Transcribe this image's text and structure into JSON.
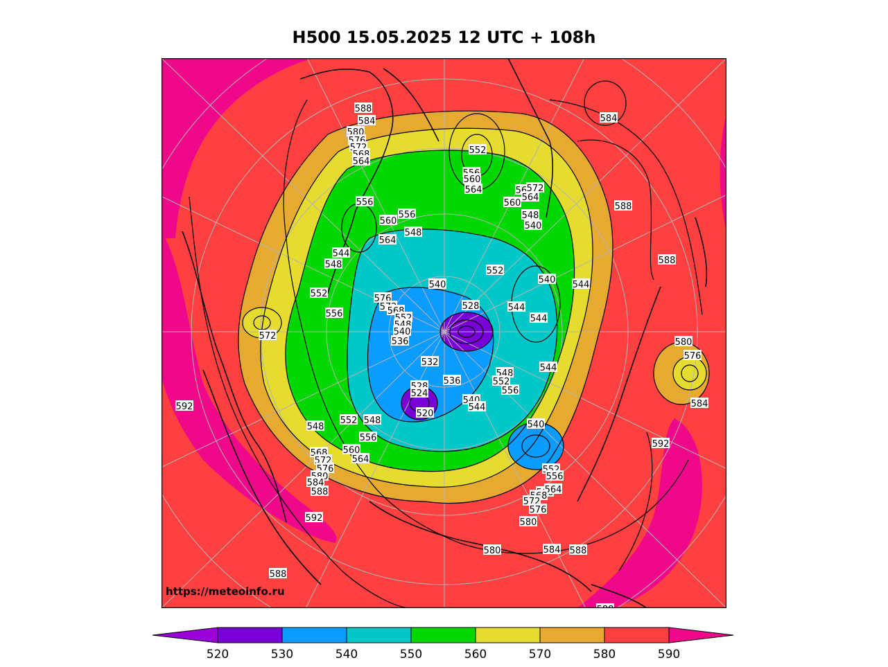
{
  "title": "H500  15.05.2025 12 UTC + 108h",
  "watermark": "https://meteoinfo.ru",
  "colorbar": {
    "ticks": [
      "520",
      "530",
      "540",
      "550",
      "560",
      "570",
      "580",
      "590"
    ],
    "colors": [
      "#9b00d6",
      "#7a00d8",
      "#0a9cff",
      "#00c8c8",
      "#00d800",
      "#e6dc30",
      "#e6aa30",
      "#ff4040",
      "#f0088a"
    ]
  },
  "contour_labels": [
    {
      "text": "588"
    },
    {
      "text": "584"
    },
    {
      "text": "580"
    },
    {
      "text": "576"
    },
    {
      "text": "572"
    },
    {
      "text": "568"
    },
    {
      "text": "564"
    },
    {
      "text": "552"
    },
    {
      "text": "556"
    },
    {
      "text": "560"
    },
    {
      "text": "564"
    },
    {
      "text": "568"
    },
    {
      "text": "572"
    },
    {
      "text": "564"
    },
    {
      "text": "560"
    },
    {
      "text": "548"
    },
    {
      "text": "540"
    },
    {
      "text": "584"
    },
    {
      "text": "588"
    },
    {
      "text": "588"
    },
    {
      "text": "556"
    },
    {
      "text": "556"
    },
    {
      "text": "560"
    },
    {
      "text": "548"
    },
    {
      "text": "564"
    },
    {
      "text": "544"
    },
    {
      "text": "548"
    },
    {
      "text": "552"
    },
    {
      "text": "556"
    },
    {
      "text": "576"
    },
    {
      "text": "572"
    },
    {
      "text": "568"
    },
    {
      "text": "552"
    },
    {
      "text": "548"
    },
    {
      "text": "540"
    },
    {
      "text": "536"
    },
    {
      "text": "572"
    },
    {
      "text": "552"
    },
    {
      "text": "540"
    },
    {
      "text": "528"
    },
    {
      "text": "544"
    },
    {
      "text": "540"
    },
    {
      "text": "544"
    },
    {
      "text": "544"
    },
    {
      "text": "580"
    },
    {
      "text": "576"
    },
    {
      "text": "584"
    },
    {
      "text": "532"
    },
    {
      "text": "548"
    },
    {
      "text": "552"
    },
    {
      "text": "556"
    },
    {
      "text": "544"
    },
    {
      "text": "536"
    },
    {
      "text": "528"
    },
    {
      "text": "524"
    },
    {
      "text": "520"
    },
    {
      "text": "540"
    },
    {
      "text": "544"
    },
    {
      "text": "592"
    },
    {
      "text": "548"
    },
    {
      "text": "552"
    },
    {
      "text": "548"
    },
    {
      "text": "556"
    },
    {
      "text": "560"
    },
    {
      "text": "564"
    },
    {
      "text": "568"
    },
    {
      "text": "572"
    },
    {
      "text": "576"
    },
    {
      "text": "580"
    },
    {
      "text": "584"
    },
    {
      "text": "588"
    },
    {
      "text": "540"
    },
    {
      "text": "552"
    },
    {
      "text": "556"
    },
    {
      "text": "560"
    },
    {
      "text": "564"
    },
    {
      "text": "568"
    },
    {
      "text": "572"
    },
    {
      "text": "576"
    },
    {
      "text": "580"
    },
    {
      "text": "592"
    },
    {
      "text": "580"
    },
    {
      "text": "584"
    },
    {
      "text": "588"
    },
    {
      "text": "592"
    },
    {
      "text": "588"
    },
    {
      "text": "588"
    }
  ]
}
